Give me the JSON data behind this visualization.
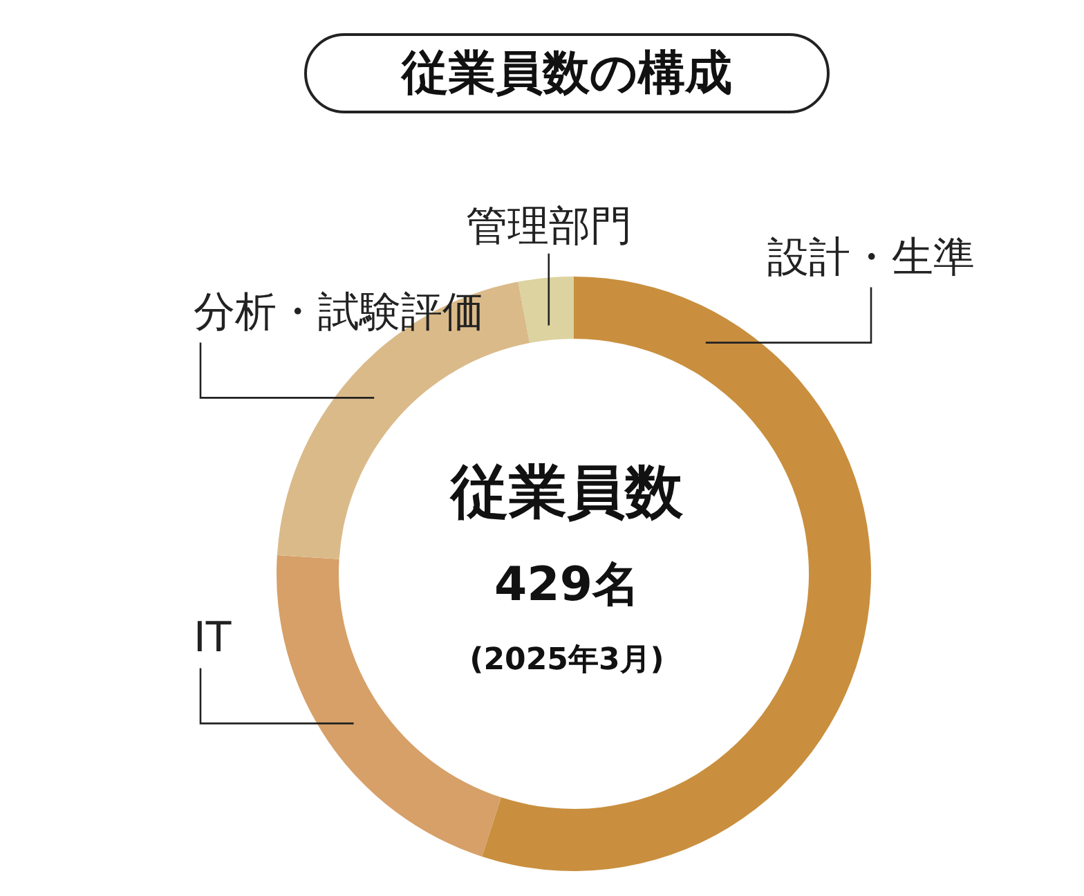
{
  "chart_data": {
    "type": "donut",
    "title": "従業員数の構成",
    "categories": [
      "設計・生準",
      "IT",
      "分析・試験評価",
      "管理部門"
    ],
    "values": [
      55,
      21,
      21,
      3
    ],
    "colors": [
      "#c98f3e",
      "#d6a068",
      "#dbba8a",
      "#dcd3a0"
    ],
    "annotations": [
      "従業員数",
      "429名",
      "(2025年3月)"
    ]
  }
}
